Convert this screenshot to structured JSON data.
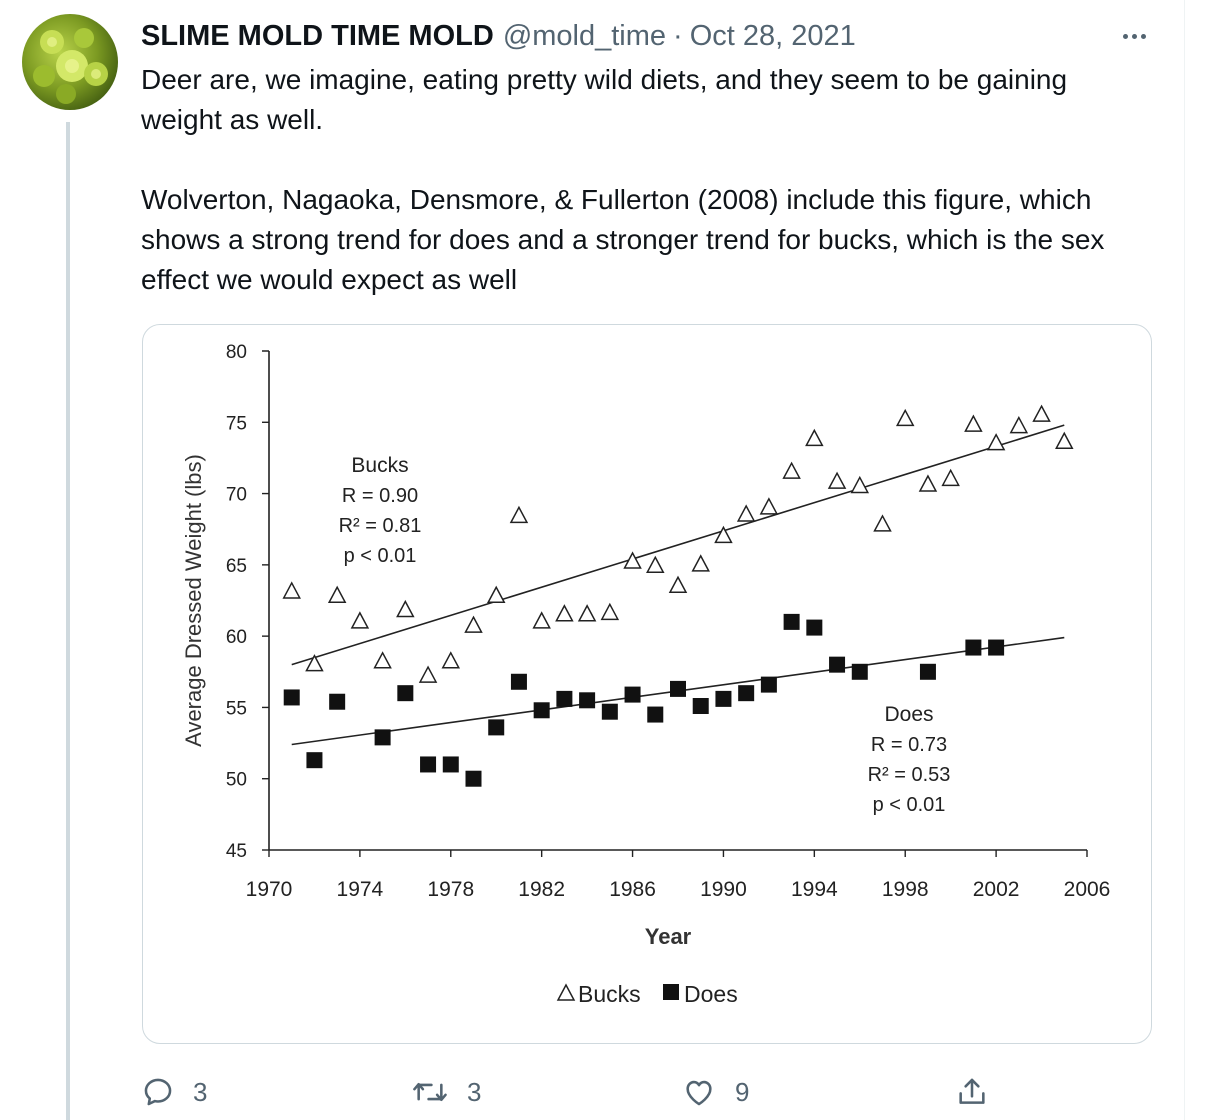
{
  "tweet": {
    "author_name": "SLIME MOLD TIME MOLD",
    "handle": "@mold_time",
    "separator": "·",
    "date": "Oct 28, 2021",
    "paragraphs": [
      "Deer are, we imagine, eating pretty wild diets, and they seem to be gaining weight as well.",
      "Wolverton, Nagaoka, Densmore, & Fullerton (2008) include this figure, which shows a strong trend for does and a stronger trend for bucks, which is the sex effect we would expect as well"
    ],
    "avatar_icon": "romanesco-avatar-icon",
    "more_icon": "more-dots-icon"
  },
  "actions": {
    "reply_count": "3",
    "retweet_count": "3",
    "like_count": "9",
    "share_count": "",
    "icons": [
      "reply-icon",
      "retweet-icon",
      "like-icon",
      "share-icon"
    ]
  },
  "chart_data": {
    "type": "scatter",
    "xlabel": "Year",
    "ylabel": "Average Dressed Weight (lbs)",
    "xlim": [
      1970,
      2006
    ],
    "ylim": [
      45,
      80
    ],
    "x_ticks": [
      1970,
      1974,
      1978,
      1982,
      1986,
      1990,
      1994,
      1998,
      2002,
      2006
    ],
    "y_ticks": [
      45,
      50,
      55,
      60,
      65,
      70,
      75,
      80
    ],
    "grid": false,
    "legend": {
      "placement": "bottom-center",
      "entries": [
        "Bucks",
        "Does"
      ]
    },
    "series": [
      {
        "name": "Bucks",
        "marker": "open-triangle",
        "x": [
          1971,
          1972,
          1973,
          1974,
          1975,
          1976,
          1977,
          1978,
          1979,
          1980,
          1981,
          1982,
          1983,
          1984,
          1985,
          1986,
          1987,
          1988,
          1989,
          1990,
          1991,
          1992,
          1993,
          1994,
          1995,
          1996,
          1997,
          1998,
          1999,
          2000,
          2001,
          2002,
          2003,
          2004,
          2005
        ],
        "y": [
          63.1,
          58.0,
          62.8,
          61.0,
          58.2,
          61.8,
          57.2,
          58.2,
          60.7,
          62.8,
          68.4,
          61.0,
          61.5,
          61.5,
          61.6,
          65.2,
          64.9,
          63.5,
          65.0,
          67.0,
          68.5,
          69.0,
          71.5,
          73.8,
          70.8,
          70.5,
          67.8,
          75.2,
          70.6,
          71.0,
          74.8,
          73.5,
          74.7,
          75.5,
          73.6
        ],
        "trend": {
          "x": [
            1971,
            2005
          ],
          "y": [
            58.0,
            74.8
          ]
        },
        "annotation": [
          "Bucks",
          "R = 0.90",
          "R² = 0.81",
          "p < 0.01"
        ]
      },
      {
        "name": "Does",
        "marker": "filled-square",
        "x": [
          1971,
          1972,
          1973,
          1975,
          1976,
          1977,
          1978,
          1979,
          1980,
          1981,
          1982,
          1983,
          1984,
          1985,
          1986,
          1987,
          1988,
          1989,
          1990,
          1991,
          1992,
          1993,
          1994,
          1995,
          1996,
          1999,
          2001,
          2002
        ],
        "y": [
          55.7,
          51.3,
          55.4,
          52.9,
          56.0,
          51.0,
          51.0,
          50.0,
          53.6,
          56.8,
          54.8,
          55.6,
          55.5,
          54.7,
          55.9,
          54.5,
          56.3,
          55.1,
          55.6,
          56.0,
          56.6,
          61.0,
          60.6,
          58.0,
          57.5,
          57.5,
          59.2,
          59.2
        ],
        "trend": {
          "x": [
            1971,
            2005
          ],
          "y": [
            52.4,
            59.9
          ]
        },
        "annotation": [
          "Does",
          "R = 0.73",
          "R² = 0.53",
          "p < 0.01"
        ]
      }
    ]
  }
}
